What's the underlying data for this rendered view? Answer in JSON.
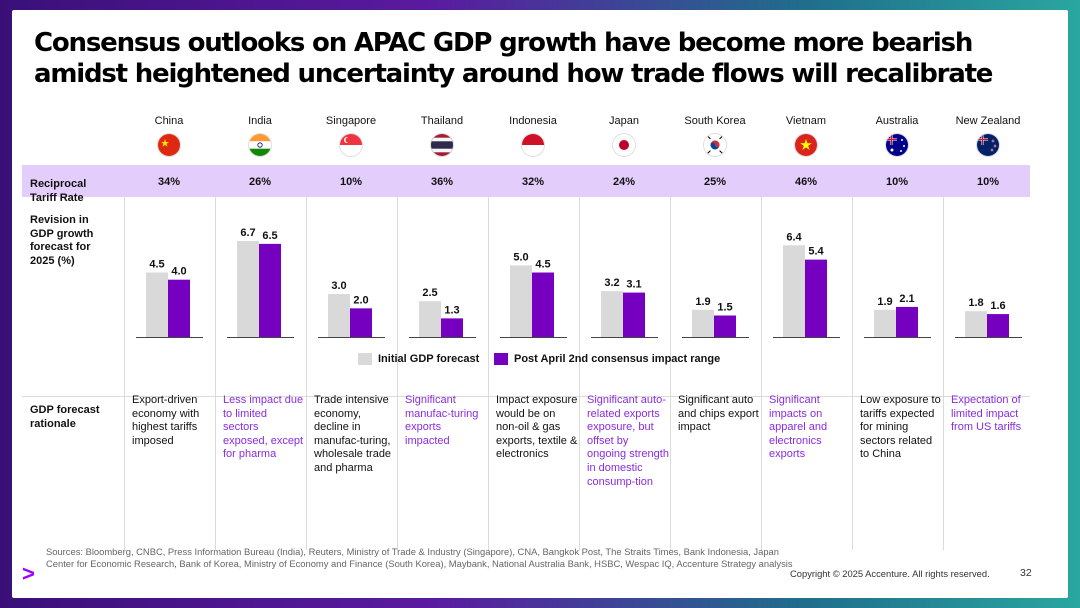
{
  "title": "Consensus outlooks on APAC GDP growth have become more bearish amidst heightened uncertainty around how trade flows will recalibrate",
  "row_labels": {
    "tariff": "Reciprocal Tariff Rate",
    "revision": "Revision in GDP growth forecast for 2025 (%)",
    "rationale": "GDP forecast rationale"
  },
  "countries": [
    {
      "name": "China",
      "flag": "china-flag",
      "tariff": "34%",
      "rationale": "Export-driven economy with highest tariffs imposed",
      "highlight": false
    },
    {
      "name": "India",
      "flag": "india-flag",
      "tariff": "26%",
      "rationale": "Less impact due to limited sectors exposed, except for pharma",
      "highlight": true
    },
    {
      "name": "Singapore",
      "flag": "singapore-flag",
      "tariff": "10%",
      "rationale": "Trade intensive economy, decline in manufac-turing, wholesale trade and pharma",
      "highlight": false
    },
    {
      "name": "Thailand",
      "flag": "thailand-flag",
      "tariff": "36%",
      "rationale": "Significant manufac-turing exports impacted",
      "highlight": true
    },
    {
      "name": "Indonesia",
      "flag": "indonesia-flag",
      "tariff": "32%",
      "rationale": "Impact exposure would be on non-oil & gas exports, textile & electronics",
      "highlight": false
    },
    {
      "name": "Japan",
      "flag": "japan-flag",
      "tariff": "24%",
      "rationale": "Significant auto-related exports exposure, but offset by ongoing strength in domestic consump-tion",
      "highlight": true
    },
    {
      "name": "South Korea",
      "flag": "south-korea-flag",
      "tariff": "25%",
      "rationale": "Significant auto and chips export impact",
      "highlight": false
    },
    {
      "name": "Vietnam",
      "flag": "vietnam-flag",
      "tariff": "46%",
      "rationale": "Significant impacts on apparel and electronics exports",
      "highlight": true
    },
    {
      "name": "Australia",
      "flag": "australia-flag",
      "tariff": "10%",
      "rationale": "Low exposure to tariffs expected for mining sectors related to China",
      "highlight": false
    },
    {
      "name": "New Zealand",
      "flag": "new-zealand-flag",
      "tariff": "10%",
      "rationale": "Expectation of limited impact from US tariffs",
      "highlight": true
    }
  ],
  "colors": {
    "initial": "#d9d9d9",
    "post": "#7500c0",
    "band": "#e3cdfb",
    "accent": "#a100ff"
  },
  "chart_data": {
    "type": "bar",
    "title": "Revision in GDP growth forecast for 2025 (%)",
    "categories": [
      "China",
      "India",
      "Singapore",
      "Thailand",
      "Indonesia",
      "Japan",
      "South Korea",
      "Vietnam",
      "Australia",
      "New Zealand"
    ],
    "series": [
      {
        "name": "Initial GDP forecast",
        "values": [
          4.5,
          6.7,
          3.0,
          2.5,
          5.0,
          3.2,
          1.9,
          6.4,
          1.9,
          1.8
        ],
        "labels": [
          "4.5",
          "6.7",
          "3.0",
          "2.5",
          "5.0",
          "3.2",
          "1.9",
          "6.4",
          "1.9",
          "1.8"
        ]
      },
      {
        "name": "Post April 2nd consensus impact range",
        "values": [
          4.0,
          6.5,
          2.0,
          1.3,
          4.5,
          3.1,
          1.5,
          5.4,
          2.1,
          1.6
        ],
        "labels": [
          "4.0",
          "6.5",
          "2.0",
          "1.3",
          "4.5",
          "3.1",
          "1.5",
          "5.4",
          "2.1",
          "1.6"
        ]
      }
    ],
    "ylim": [
      0,
      7.5
    ],
    "grid": false,
    "legend": "bottom-center"
  },
  "legend": {
    "initial": "Initial GDP forecast",
    "post": "Post April 2nd consensus impact range"
  },
  "footer": {
    "sources": "Sources: Bloomberg, CNBC, Press Information Bureau (India), Reuters, Ministry of Trade & Industry (Singapore), CNA, Bangkok Post, The Straits Times, Bank Indonesia, Japan Center for Economic Research, Bank of Korea, Ministry of Economy and Finance (South Korea), Maybank, National Australia Bank, HSBC, Wespac IQ, Accenture Strategy analysis",
    "copyright": "Copyright © 2025 Accenture. All rights reserved.",
    "page": "32",
    "logo": ">"
  }
}
